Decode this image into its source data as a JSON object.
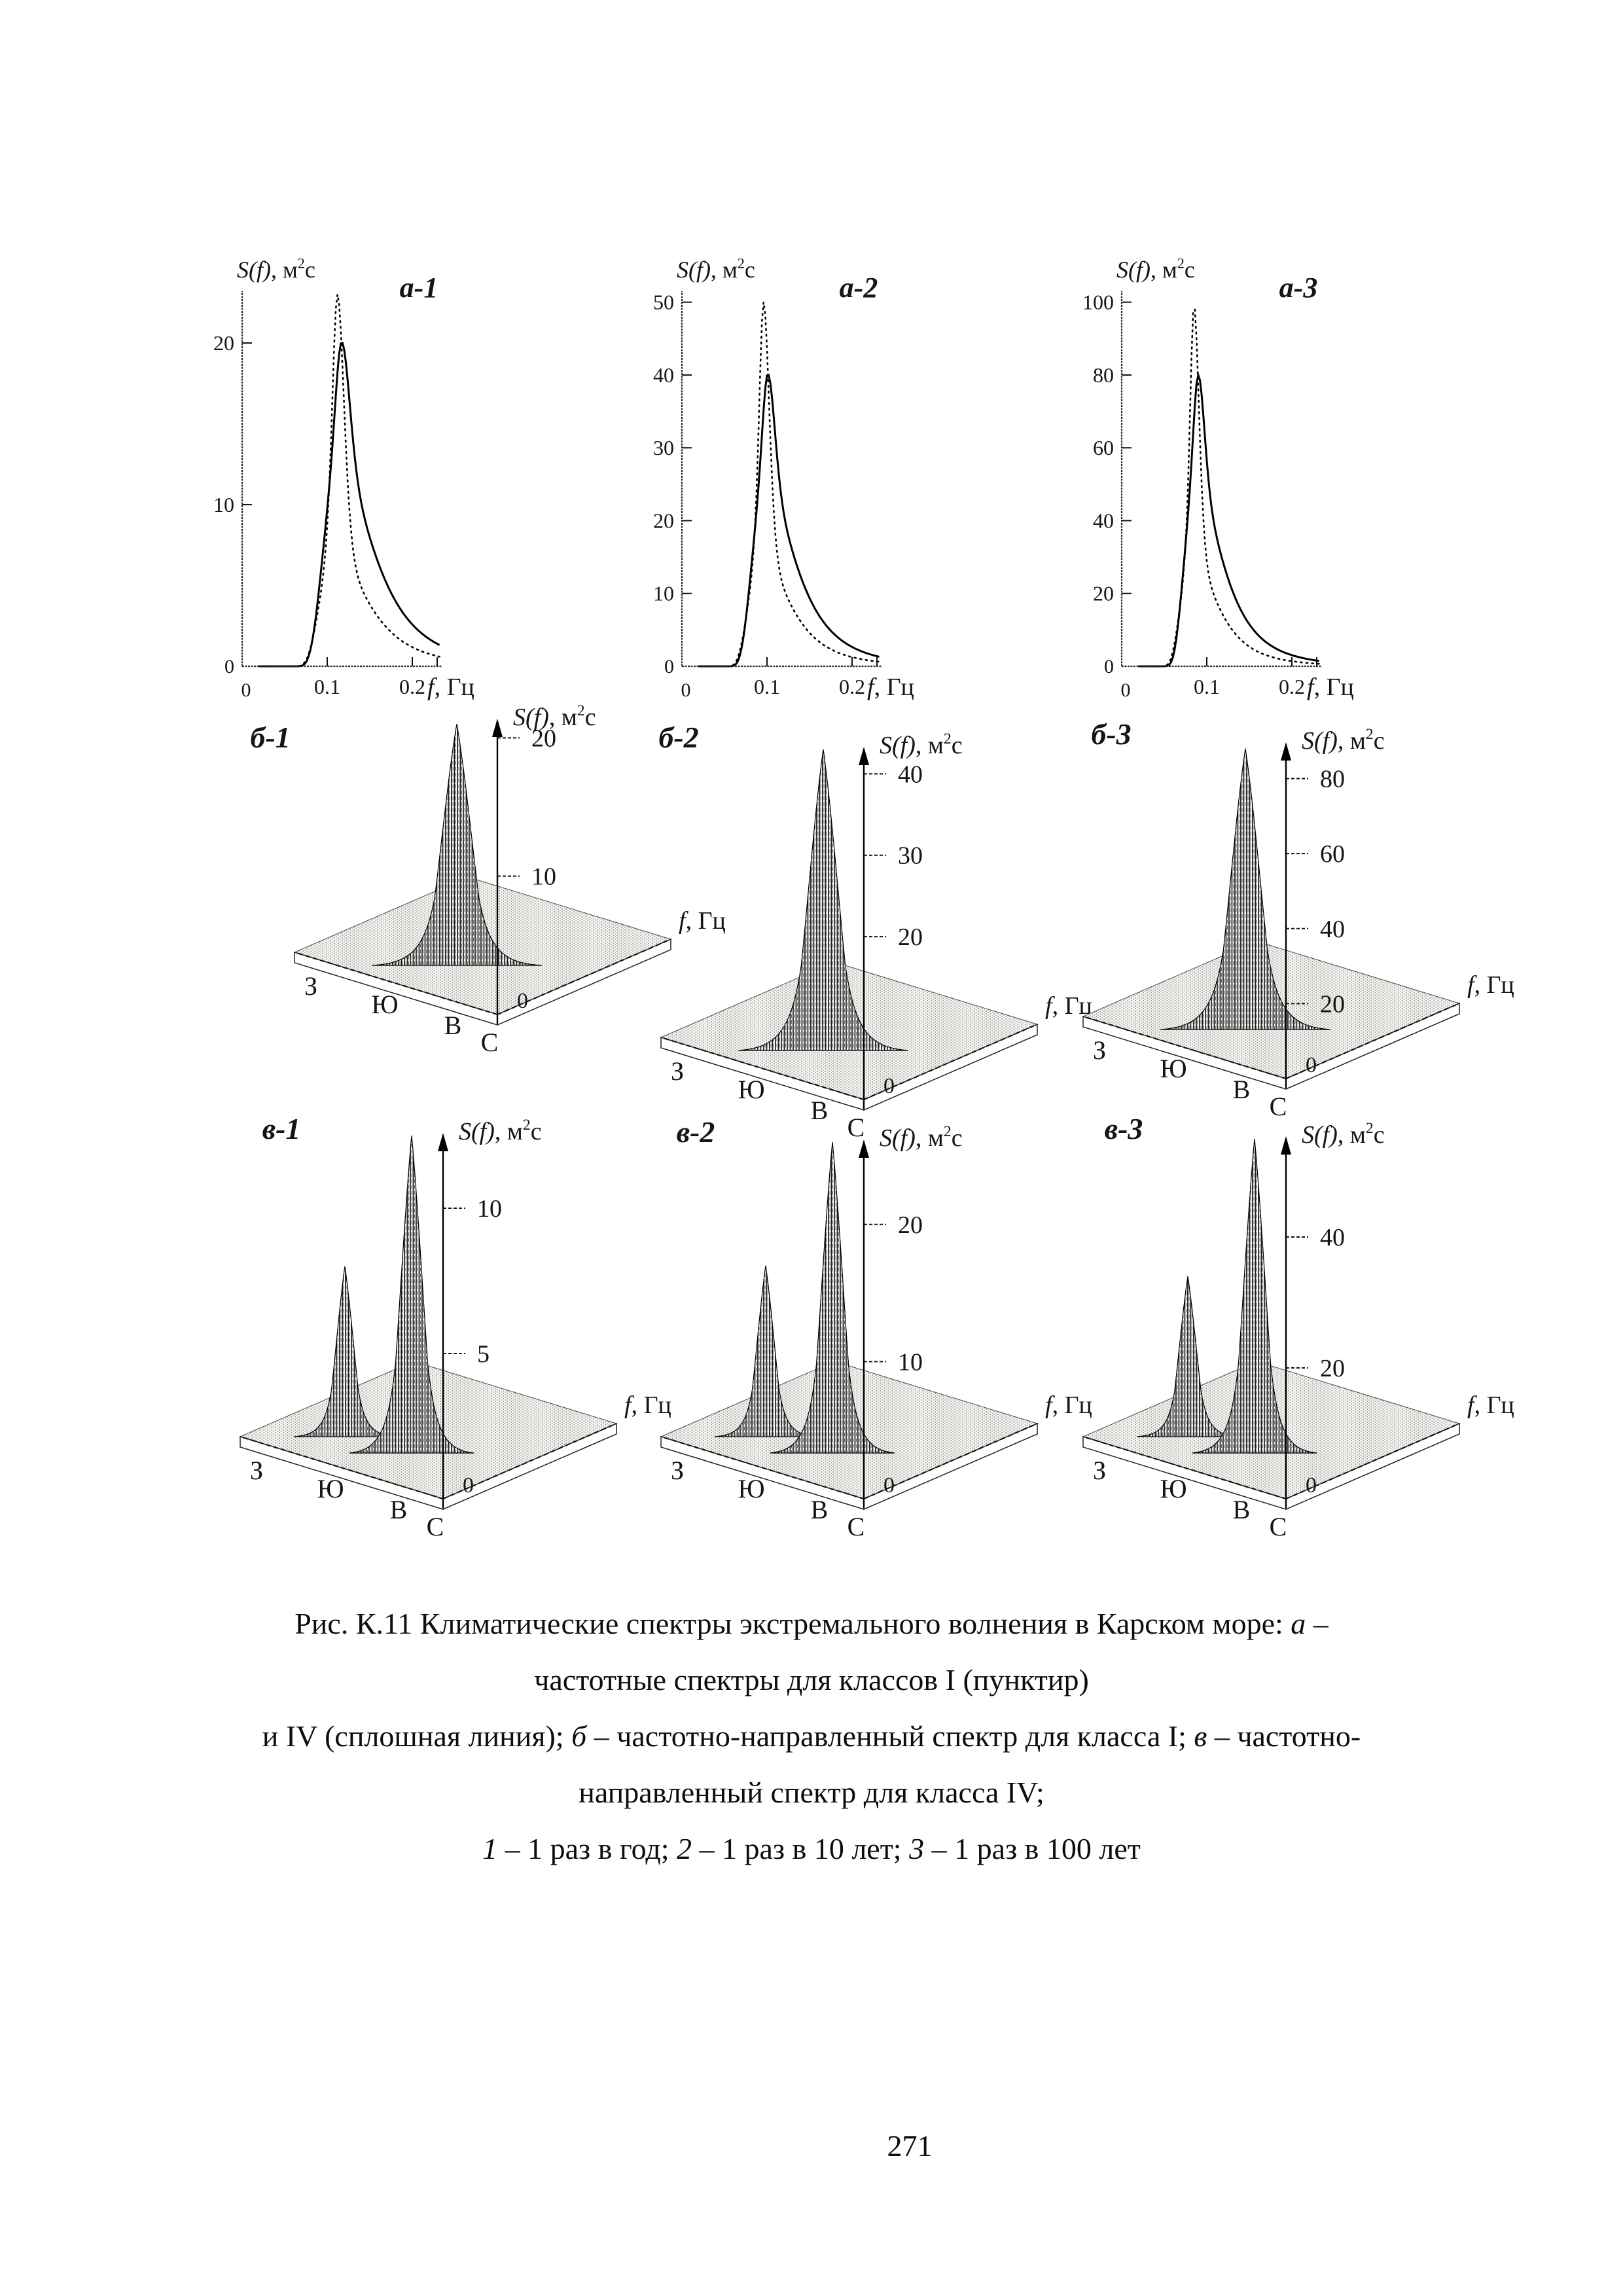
{
  "page": {
    "number": "271",
    "background": "#ffffff",
    "ink": "#151515"
  },
  "axis_label": {
    "func": "S(f)",
    "mid": ", м",
    "sup": "2",
    "end": "с"
  },
  "freq_label": {
    "f": "f",
    "rest": ", Гц"
  },
  "compass": {
    "west": "З",
    "south": "Ю",
    "east": "В",
    "north": "С"
  },
  "zero_label": "0",
  "chart_data": [
    {
      "id": "а-1",
      "type": "line",
      "title": "а-1",
      "xlabel": "f, Гц",
      "ylabel": "S(f), м2с",
      "xlim": [
        0,
        0.235
      ],
      "ylim": [
        0,
        23.2
      ],
      "x_ticks": [
        0.1,
        0.2
      ],
      "y_ticks": [
        10,
        20
      ],
      "series": [
        {
          "name": "класс I (пунктир)",
          "line": "dotted",
          "peak": 23,
          "peak_freq": 0.112,
          "gamma": 3.3
        },
        {
          "name": "класс IV (сплошная линия)",
          "line": "solid",
          "peak": 20,
          "peak_freq": 0.117,
          "gamma": 1.6
        }
      ]
    },
    {
      "id": "а-2",
      "type": "line",
      "title": "а-2",
      "xlabel": "f, Гц",
      "ylabel": "S(f), м2с",
      "xlim": [
        0,
        0.235
      ],
      "ylim": [
        0,
        51.5
      ],
      "x_ticks": [
        0.1,
        0.2
      ],
      "y_ticks": [
        10,
        20,
        30,
        40,
        50
      ],
      "series": [
        {
          "name": "класс I (пунктир)",
          "line": "dotted",
          "peak": 50,
          "peak_freq": 0.096,
          "gamma": 3.3
        },
        {
          "name": "класс IV (сплошная линия)",
          "line": "solid",
          "peak": 40,
          "peak_freq": 0.101,
          "gamma": 1.6
        }
      ]
    },
    {
      "id": "а-3",
      "type": "line",
      "title": "а-3",
      "xlabel": "f, Гц",
      "ylabel": "S(f), м2с",
      "xlim": [
        0,
        0.235
      ],
      "ylim": [
        0,
        103
      ],
      "x_ticks": [
        0.1,
        0.2
      ],
      "y_ticks": [
        20,
        40,
        60,
        80,
        100
      ],
      "series": [
        {
          "name": "класс I (пунктир)",
          "line": "dotted",
          "peak": 98,
          "peak_freq": 0.085,
          "gamma": 3.3
        },
        {
          "name": "класс IV (сплошная линия)",
          "line": "solid",
          "peak": 80,
          "peak_freq": 0.09,
          "gamma": 1.6
        }
      ]
    },
    {
      "id": "б-1",
      "type": "surface",
      "title": "б-1",
      "zlabel": "S(f), м2с",
      "xlabel": "f, Гц",
      "direction_labels": [
        "З",
        "Ю",
        "В",
        "С"
      ],
      "z_ticks": [
        10,
        20
      ],
      "zlim": [
        0,
        21.2
      ],
      "peaks": [
        {
          "value": 21
        }
      ]
    },
    {
      "id": "б-2",
      "type": "surface",
      "title": "б-2",
      "zlabel": "S(f), м2с",
      "xlabel": "f, Гц",
      "direction_labels": [
        "З",
        "Ю",
        "В",
        "С"
      ],
      "z_ticks": [
        20,
        30,
        40
      ],
      "zlim": [
        0,
        43
      ],
      "peaks": [
        {
          "value": 43
        }
      ]
    },
    {
      "id": "б-3",
      "type": "surface",
      "title": "б-3",
      "zlabel": "S(f), м2с",
      "xlabel": "f, Гц",
      "direction_labels": [
        "З",
        "Ю",
        "В",
        "С"
      ],
      "z_ticks": [
        20,
        40,
        60,
        80
      ],
      "zlim": [
        0,
        89
      ],
      "peaks": [
        {
          "value": 88
        }
      ]
    },
    {
      "id": "в-1",
      "type": "surface",
      "title": "в-1",
      "zlabel": "S(f), м2с",
      "xlabel": "f, Гц",
      "direction_labels": [
        "З",
        "Ю",
        "В",
        "С"
      ],
      "z_ticks": [
        5,
        10
      ],
      "zlim": [
        0,
        12.5
      ],
      "peaks": [
        {
          "value": 8
        },
        {
          "value": 12.5
        }
      ]
    },
    {
      "id": "в-2",
      "type": "surface",
      "title": "в-2",
      "zlabel": "S(f), м2с",
      "xlabel": "f, Гц",
      "direction_labels": [
        "З",
        "Ю",
        "В",
        "С"
      ],
      "z_ticks": [
        10,
        20
      ],
      "zlim": [
        0,
        26
      ],
      "peaks": [
        {
          "value": 17
        },
        {
          "value": 26
        }
      ]
    },
    {
      "id": "в-3",
      "type": "surface",
      "title": "в-3",
      "zlabel": "S(f), м2с",
      "xlabel": "f, Гц",
      "direction_labels": [
        "З",
        "Ю",
        "В",
        "С"
      ],
      "z_ticks": [
        20,
        40
      ],
      "zlim": [
        0,
        55
      ],
      "peaks": [
        {
          "value": 34
        },
        {
          "value": 55
        }
      ]
    }
  ],
  "caption": {
    "lines": [
      {
        "segments": [
          {
            "t": "Рис. К.11 Климатические спектры экстремального волнения в Карском море: ",
            "i": false
          },
          {
            "t": "а",
            "i": true
          },
          {
            "t": " –",
            "i": false
          }
        ]
      },
      {
        "segments": [
          {
            "t": "частотные спектры для классов I (пунктир)",
            "i": false
          }
        ]
      },
      {
        "segments": [
          {
            "t": "и IV (сплошная линия); ",
            "i": false
          },
          {
            "t": "б",
            "i": true
          },
          {
            "t": " – частотно-направленный спектр для класса I; ",
            "i": false
          },
          {
            "t": "в",
            "i": true
          },
          {
            "t": " – частотно-",
            "i": false
          }
        ]
      },
      {
        "segments": [
          {
            "t": "направленный спектр для класса IV;",
            "i": false
          }
        ]
      },
      {
        "segments": [
          {
            "t": "1",
            "i": true
          },
          {
            "t": " – 1 раз в год; ",
            "i": false
          },
          {
            "t": "2",
            "i": true
          },
          {
            "t": " – 1 раз в 10 лет; ",
            "i": false
          },
          {
            "t": "3",
            "i": true
          },
          {
            "t": " – 1 раз в 100 лет",
            "i": false
          }
        ]
      }
    ]
  }
}
